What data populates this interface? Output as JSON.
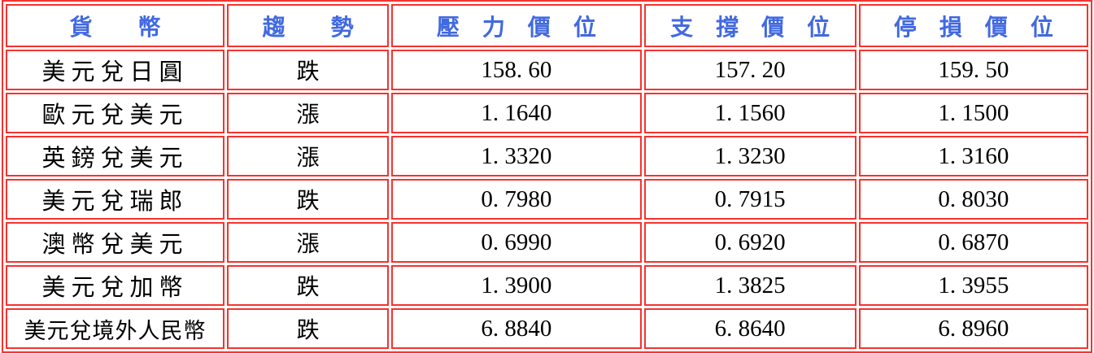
{
  "page": {
    "background": "#ffffff"
  },
  "colors": {
    "table_border_red": "#f5332f",
    "header_text_blue": "#4169e1",
    "body_text_black": "#000000"
  },
  "table": {
    "columns": [
      {
        "id": "currency",
        "label": "貨　　幣"
      },
      {
        "id": "trend",
        "label": "趨　　勢"
      },
      {
        "id": "resistance",
        "label": "壓　力　價　位"
      },
      {
        "id": "support",
        "label": "支　撐　價　位"
      },
      {
        "id": "stop_loss",
        "label": "停　損　價　位"
      }
    ],
    "rows": [
      {
        "currency": "美元兌日圓",
        "trend": "跌",
        "resistance": "158. 60",
        "support": "157. 20",
        "stop_loss": "159. 50"
      },
      {
        "currency": "歐元兌美元",
        "trend": "漲",
        "resistance": "1. 1640",
        "support": "1. 1560",
        "stop_loss": "1. 1500"
      },
      {
        "currency": "英鎊兌美元",
        "trend": "漲",
        "resistance": "1. 3320",
        "support": "1. 3230",
        "stop_loss": "1. 3160"
      },
      {
        "currency": "美元兌瑞郎",
        "trend": "跌",
        "resistance": "0. 7980",
        "support": "0. 7915",
        "stop_loss": "0. 8030"
      },
      {
        "currency": "澳幣兌美元",
        "trend": "漲",
        "resistance": "0. 6990",
        "support": "0. 6920",
        "stop_loss": "0. 6870"
      },
      {
        "currency": "美元兌加幣",
        "trend": "跌",
        "resistance": "1. 3900",
        "support": "1. 3825",
        "stop_loss": "1. 3955"
      },
      {
        "currency": "美元兌境外人民幣",
        "trend": "跌",
        "resistance": "6. 8840",
        "support": "6. 8640",
        "stop_loss": "6. 8960"
      }
    ]
  }
}
